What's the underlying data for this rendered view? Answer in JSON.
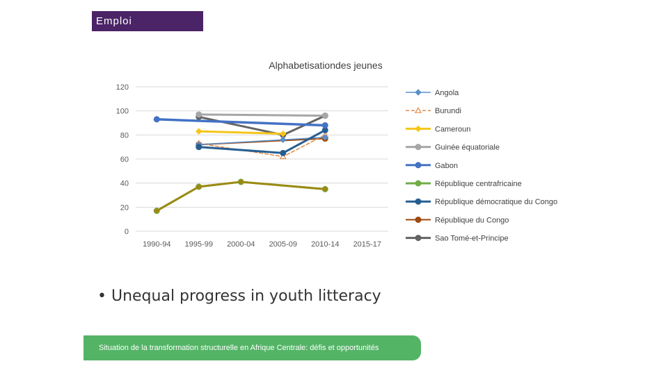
{
  "header": {
    "section_tag": "Emploi"
  },
  "bullet": {
    "text": "• Unequal progress in youth litteracy"
  },
  "footer": {
    "text": "Situation de la transformation structurelle en Afrique Centrale:  défis et opportunités"
  },
  "chart_data": {
    "type": "line",
    "title": "Alphabetisationdes jeunes",
    "categories": [
      "1990-94",
      "1995-99",
      "2000-04",
      "2005-09",
      "2010-14",
      "2015-17"
    ],
    "ylim": [
      0,
      120
    ],
    "yticks": [
      0,
      20,
      40,
      60,
      80,
      100,
      120
    ],
    "grid": true,
    "legend_position": "right",
    "series": [
      {
        "name": "Angola",
        "color": "#5b8fc7",
        "marker": "diamond",
        "dash": "",
        "width": 1.5,
        "values": [
          null,
          72,
          null,
          76,
          78,
          null
        ]
      },
      {
        "name": "Burundi",
        "color": "#e08a4a",
        "marker": "triangle",
        "dash": "5,3",
        "width": 1.5,
        "values": [
          null,
          73,
          null,
          62,
          80,
          null
        ]
      },
      {
        "name": "Cameroun",
        "color": "#f5c518",
        "marker": "diamond",
        "dash": "",
        "width": 3,
        "values": [
          null,
          83,
          null,
          81,
          null,
          null
        ]
      },
      {
        "name": "Guinée équatoriale",
        "color": "#a6a6a6",
        "marker": "circle",
        "dash": "",
        "width": 3,
        "values": [
          null,
          97,
          null,
          null,
          96,
          null
        ]
      },
      {
        "name": "Gabon",
        "color": "#4472c4",
        "marker": "circle",
        "dash": "",
        "width": 3.5,
        "values": [
          93,
          null,
          null,
          null,
          88,
          null
        ]
      },
      {
        "name": "République centrafricaine",
        "color": "#70ad47",
        "marker": "circle",
        "dash": "",
        "width": 3,
        "values": [
          17,
          37,
          41,
          null,
          35,
          null
        ]
      },
      {
        "name": "République démocratique du Congo",
        "color": "#255e91",
        "marker": "circle",
        "dash": "",
        "width": 3,
        "values": [
          null,
          70,
          null,
          65,
          84,
          null
        ]
      },
      {
        "name": "République du Congo",
        "color": "#9e480e",
        "marker": "circle",
        "dash": "",
        "width": 2,
        "values": [
          null,
          72,
          null,
          null,
          77,
          null
        ]
      },
      {
        "name": "Sao Tomé-et-Principe",
        "color": "#636363",
        "marker": "circle",
        "dash": "",
        "width": 3,
        "values": [
          null,
          95,
          null,
          80,
          96,
          null
        ]
      }
    ],
    "overlay_series": {
      "name": "République centrafricaine",
      "color": "#9c8a14",
      "values": [
        17,
        37,
        41,
        null,
        35,
        null
      ]
    }
  }
}
